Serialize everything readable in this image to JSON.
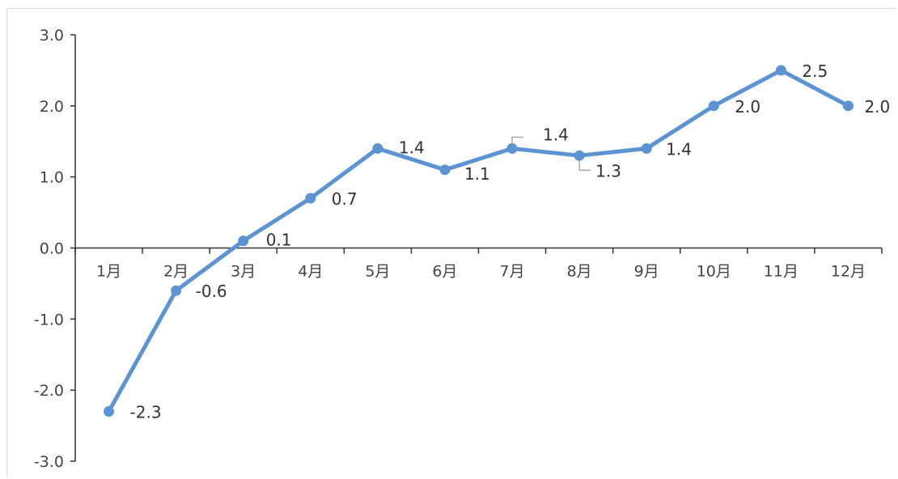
{
  "chart_data": {
    "type": "line",
    "title": "",
    "xlabel": "",
    "ylabel": "",
    "categories": [
      "1月",
      "2月",
      "3月",
      "4月",
      "5月",
      "6月",
      "7月",
      "8月",
      "9月",
      "10月",
      "11月",
      "12月"
    ],
    "series": [
      {
        "values": [
          -2.3,
          -0.6,
          0.1,
          0.7,
          1.4,
          1.1,
          1.4,
          1.3,
          1.4,
          2.0,
          2.5,
          2.0
        ]
      }
    ],
    "data_labels": [
      "-2.3",
      "-0.6",
      "0.1",
      "0.7",
      "1.4",
      "1.1",
      "1.4",
      "1.3",
      "1.4",
      "2.0",
      "2.5",
      "2.0"
    ],
    "ylim": [
      -3.0,
      3.0
    ],
    "yticks": [
      "3.0",
      "2.0",
      "1.0",
      "0.0",
      "-1.0",
      "-2.0",
      "-3.0"
    ],
    "ytick_values": [
      3.0,
      2.0,
      1.0,
      0.0,
      -1.0,
      -2.0,
      -3.0
    ],
    "grid": false,
    "legend": "none",
    "line_color": "#5b93d3",
    "axis_color": "#333333"
  }
}
